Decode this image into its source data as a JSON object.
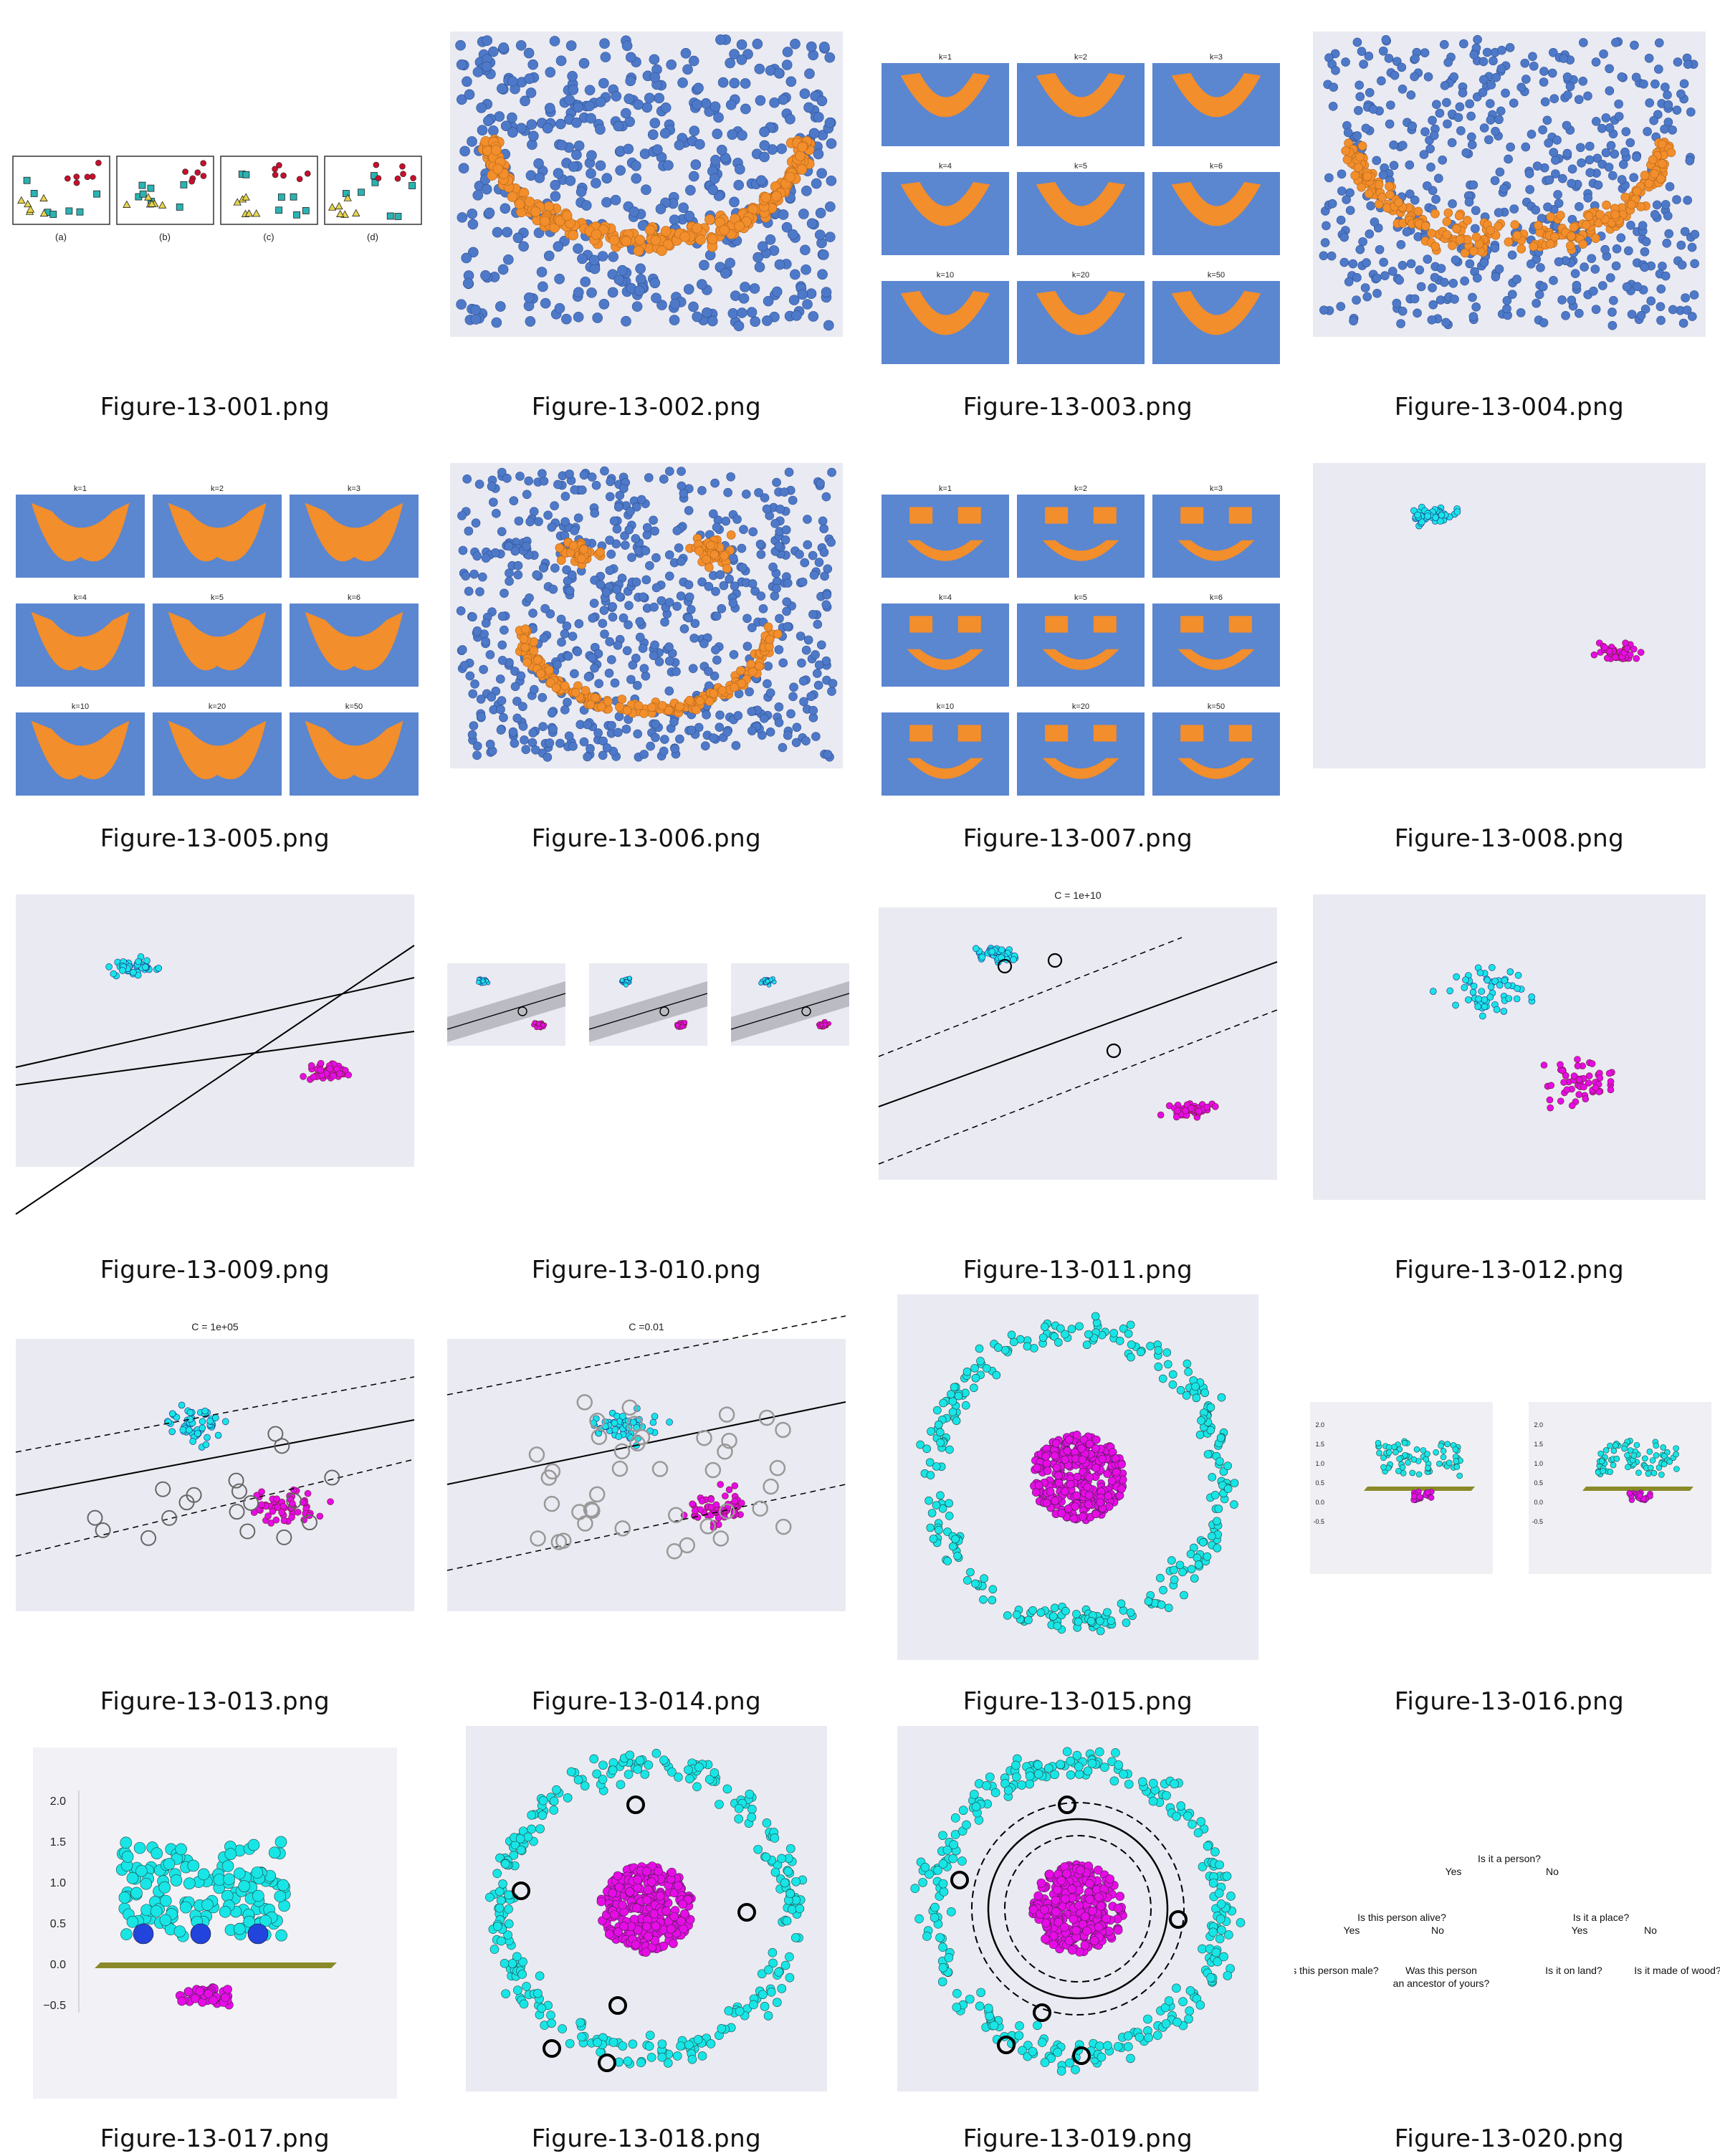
{
  "thumbnails": [
    {
      "file": "Figure-13-001.png",
      "icon": "knn-panels-thumbnail",
      "panel_labels": [
        "(a)",
        "(b)",
        "(c)",
        "(d)"
      ]
    },
    {
      "file": "Figure-13-002.png",
      "icon": "moon-scatter-thumbnail"
    },
    {
      "file": "Figure-13-003.png",
      "icon": "knn-grid-thumbnail",
      "panel_labels": [
        "k=1",
        "k=2",
        "k=3",
        "k=4",
        "k=5",
        "k=6",
        "k=10",
        "k=20",
        "k=50"
      ]
    },
    {
      "file": "Figure-13-004.png",
      "icon": "noisy-moon-scatter-thumbnail"
    },
    {
      "file": "Figure-13-005.png",
      "icon": "knn-grid-thumbnail",
      "panel_labels": [
        "k=1",
        "k=2",
        "k=3",
        "k=4",
        "k=5",
        "k=6",
        "k=10",
        "k=20",
        "k=50"
      ]
    },
    {
      "file": "Figure-13-006.png",
      "icon": "smiley-scatter-thumbnail"
    },
    {
      "file": "Figure-13-007.png",
      "icon": "knn-grid-thumbnail",
      "panel_labels": [
        "k=1",
        "k=2",
        "k=3",
        "k=4",
        "k=5",
        "k=6",
        "k=10",
        "k=20",
        "k=50"
      ]
    },
    {
      "file": "Figure-13-008.png",
      "icon": "two-cluster-scatter-thumbnail"
    },
    {
      "file": "Figure-13-009.png",
      "icon": "separating-lines-thumbnail"
    },
    {
      "file": "Figure-13-010.png",
      "icon": "margin-panels-thumbnail"
    },
    {
      "file": "Figure-13-011.png",
      "icon": "svm-margin-thumbnail",
      "title": "C = 1e+10"
    },
    {
      "file": "Figure-13-012.png",
      "icon": "overlap-scatter-thumbnail"
    },
    {
      "file": "Figure-13-013.png",
      "icon": "svm-margin-thumbnail",
      "title": "C = 1e+05"
    },
    {
      "file": "Figure-13-014.png",
      "icon": "svm-margin-thumbnail",
      "title": "C =0.01"
    },
    {
      "file": "Figure-13-015.png",
      "icon": "ring-scatter-thumbnail"
    },
    {
      "file": "Figure-13-016.png",
      "icon": "3d-kernel-thumbnail",
      "ticks": [
        "2.0",
        "1.5",
        "1.0",
        "0.5",
        "0.0",
        "-0.5"
      ]
    },
    {
      "file": "Figure-13-017.png",
      "icon": "3d-kernel-thumbnail",
      "ticks": [
        "2.0",
        "1.5",
        "1.0",
        "0.5",
        "0.0",
        "−0.5"
      ]
    },
    {
      "file": "Figure-13-018.png",
      "icon": "ring-support-vectors-thumbnail"
    },
    {
      "file": "Figure-13-019.png",
      "icon": "ring-margin-thumbnail"
    },
    {
      "file": "Figure-13-020.png",
      "icon": "decision-tree-thumbnail",
      "tree": {
        "root": "Is it a person?",
        "yes": "Yes",
        "no": "No",
        "left": "Is this person alive?",
        "right": "Is it a place?",
        "ll": "Is this person male?",
        "lr": "Was this person\nan ancestor of yours?",
        "rl": "Is it on land?",
        "rr": "Is it made of wood?"
      }
    }
  ],
  "colors": {
    "blue": "#4e79c9",
    "orange": "#f28e2b",
    "cyan": "#18e5e5",
    "magenta": "#e60ce6",
    "panel_bg": "#eaeaf2",
    "grid_bg": "#5b86d0"
  }
}
